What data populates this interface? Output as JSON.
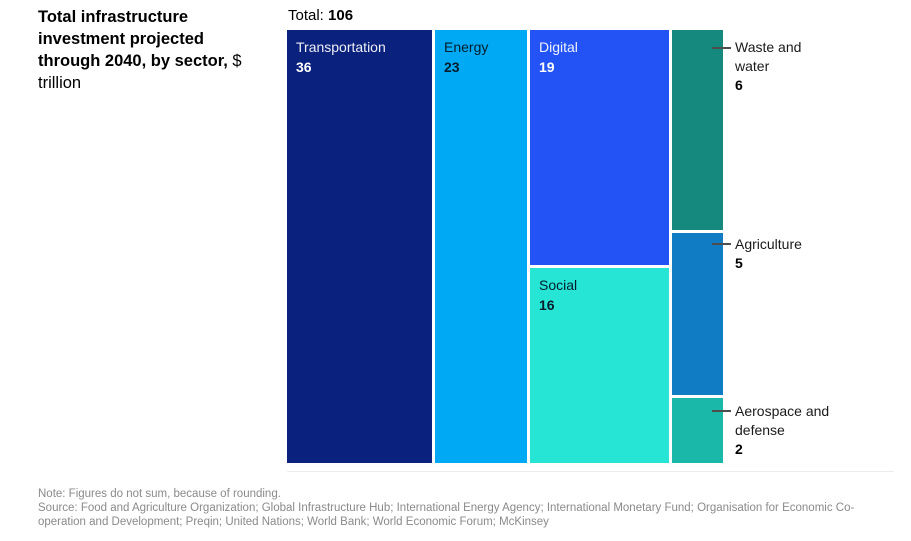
{
  "title": {
    "bold": "Total infrastructure investment projected through 2040, by sector,",
    "unit": "$ trillion"
  },
  "total": {
    "label": "Total:",
    "value": "106"
  },
  "chart_data": {
    "type": "treemap",
    "title": "Total infrastructure investment projected through 2040, by sector, $ trillion",
    "total": 106,
    "unit": "$ trillion",
    "layout_hint": "columns left-to-right: Transportation | Energy | Digital over Social | Waste and water over Agriculture over Aerospace and defense; right-side callout labels for smallest sectors",
    "sectors": [
      {
        "name": "Transportation",
        "value": 36,
        "color": "#0a217d",
        "label_style": "light",
        "label_position": "inside"
      },
      {
        "name": "Energy",
        "value": 23,
        "color": "#00a9f4",
        "label_style": "dark",
        "label_position": "inside"
      },
      {
        "name": "Digital",
        "value": 19,
        "color": "#2353f4",
        "label_style": "light",
        "label_position": "inside"
      },
      {
        "name": "Social",
        "value": 16,
        "color": "#27e5d5",
        "label_style": "dark",
        "label_position": "inside"
      },
      {
        "name": "Waste and water",
        "value": 6,
        "color": "#15897e",
        "label_style": "dark",
        "label_position": "callout-right"
      },
      {
        "name": "Agriculture",
        "value": 5,
        "color": "#0f7cc4",
        "label_style": "dark",
        "label_position": "callout-right"
      },
      {
        "name": "Aerospace and defense",
        "value": 2,
        "color": "#19b8a8",
        "label_style": "dark",
        "label_position": "callout-right"
      }
    ]
  },
  "footnotes": {
    "note": "Note: Figures do not sum, because of rounding.",
    "source": "Source: Food and Agriculture Organization; Global Infrastructure Hub; International Energy Agency; International Monetary Fund; Organisation for Economic Co-operation and Development; Preqin; United Nations; World Bank; World Economic Forum; McKinsey"
  }
}
